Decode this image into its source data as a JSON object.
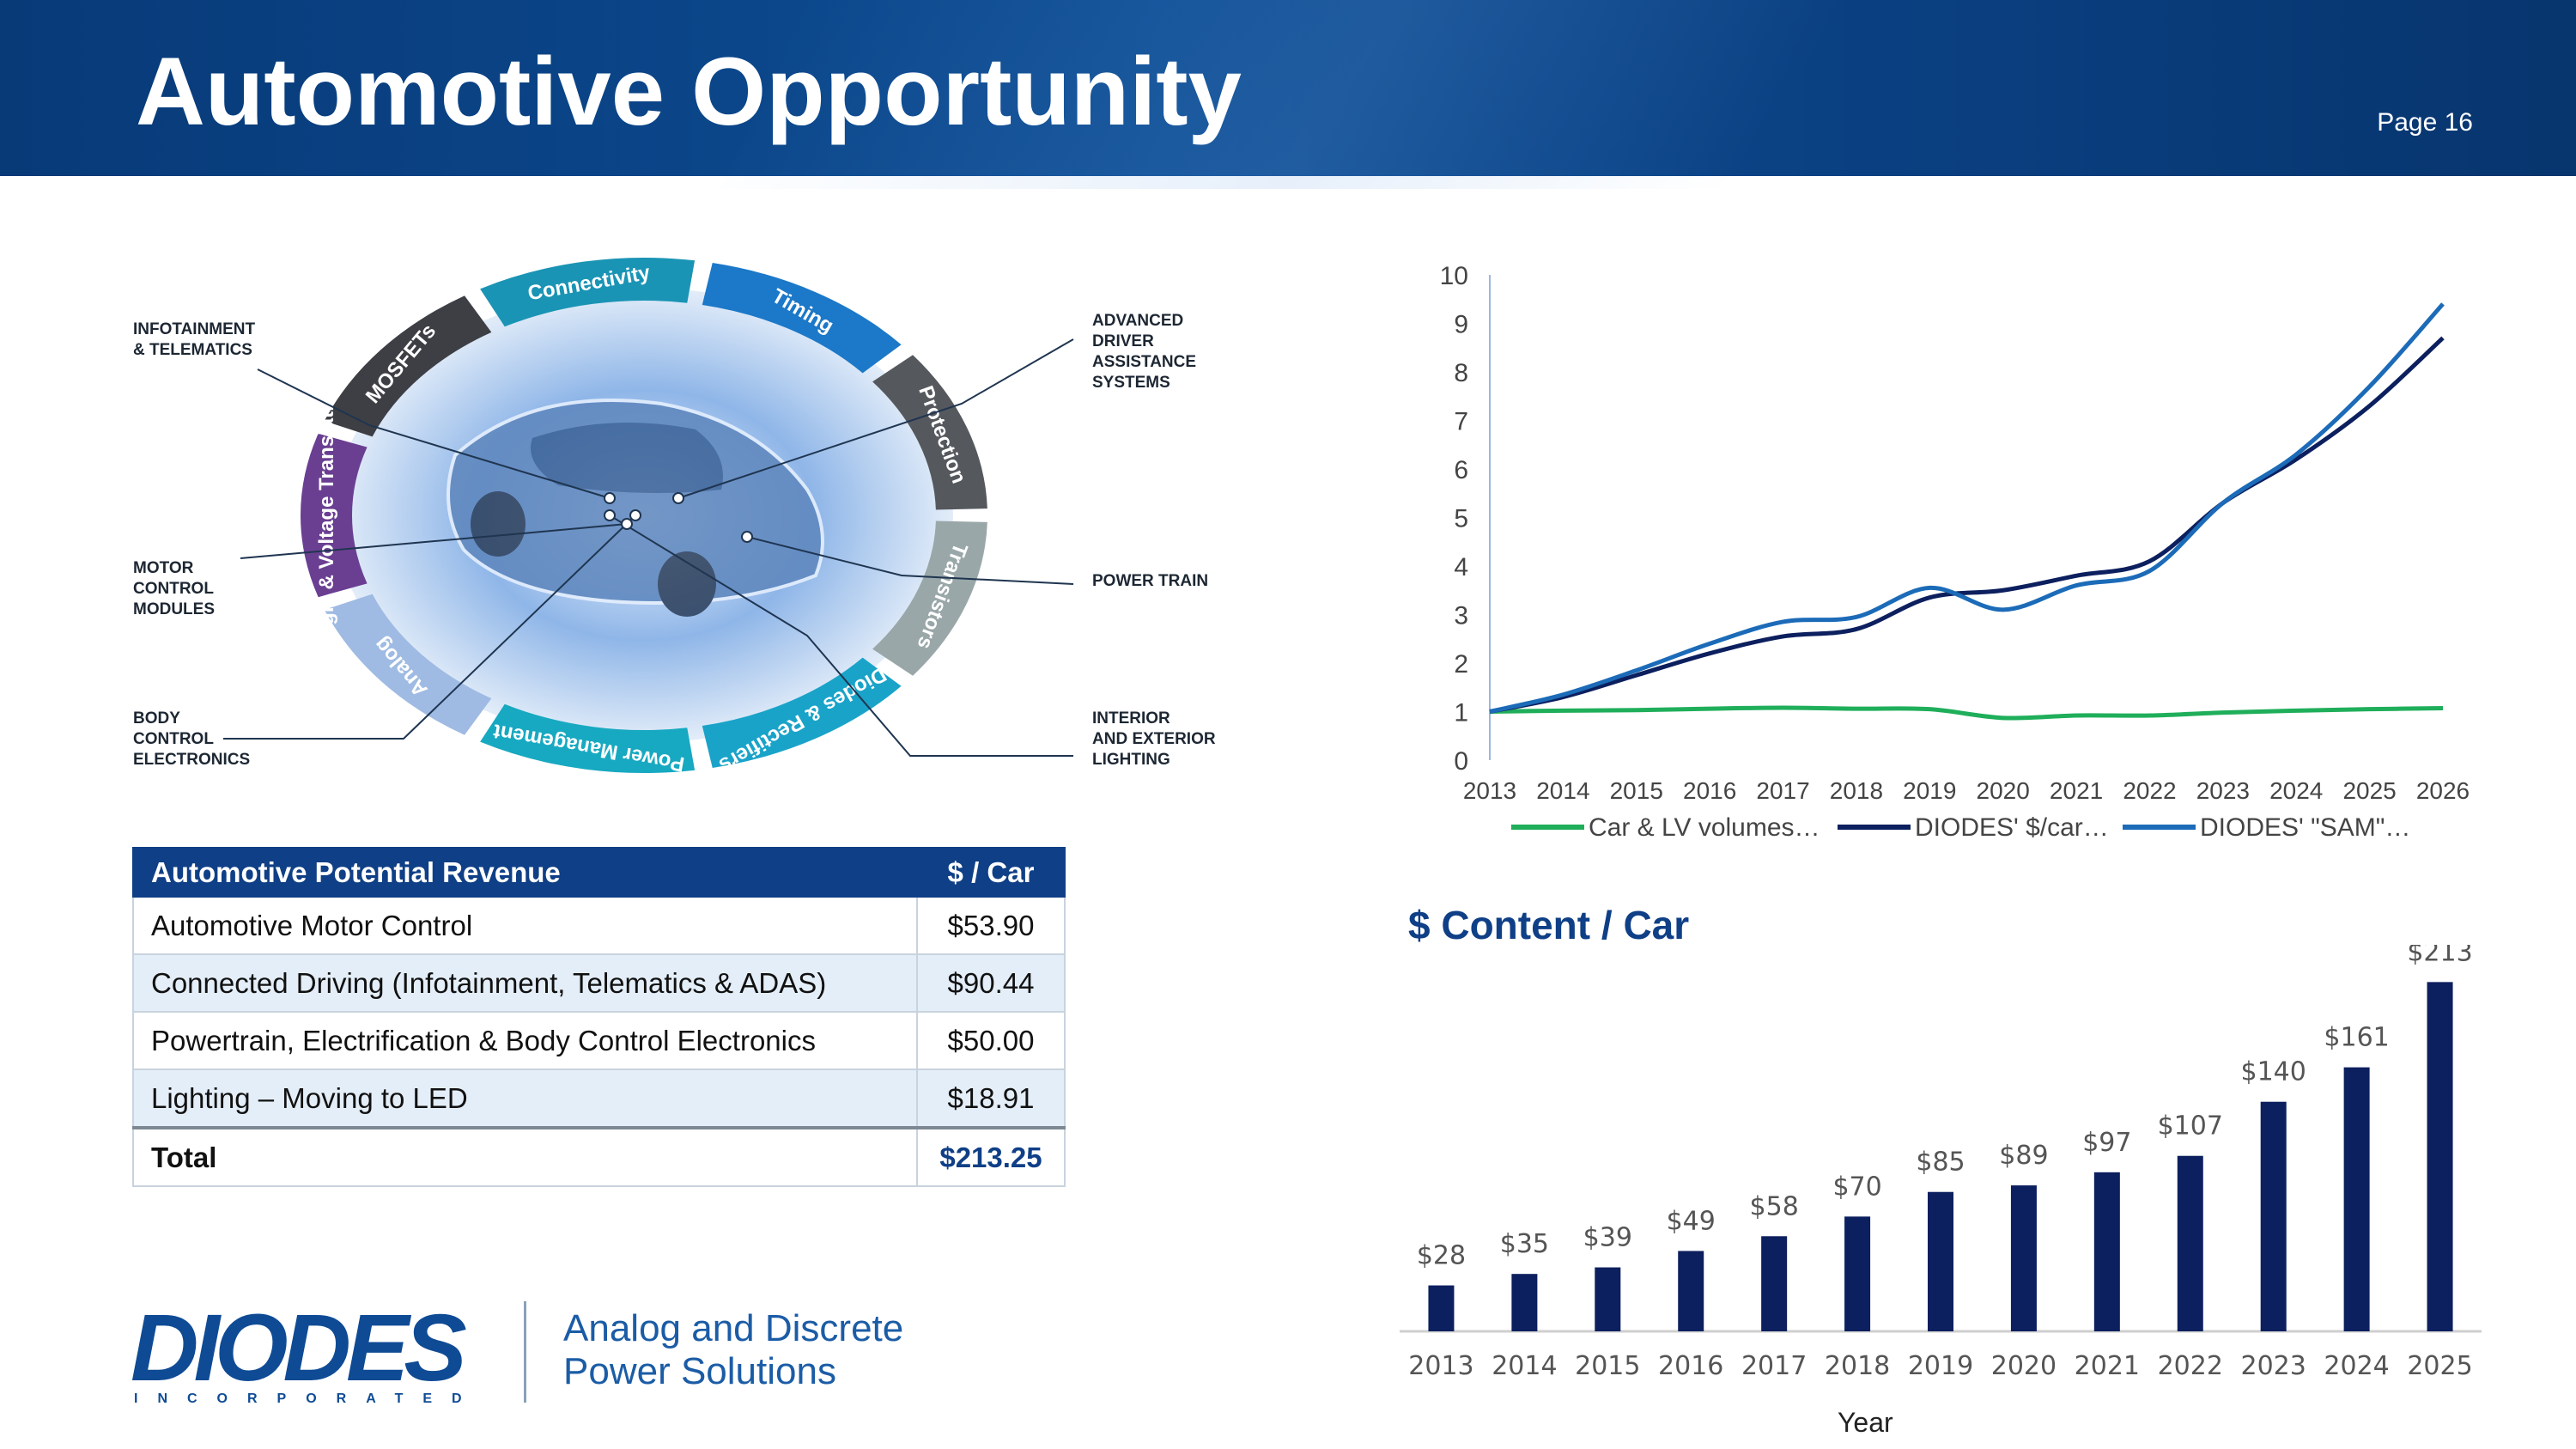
{
  "header": {
    "title": "Automotive Opportunity",
    "page": "Page 16"
  },
  "diagram": {
    "segments": [
      "MOSFETs",
      "Connectivity",
      "Timing",
      "Protection",
      "Transistors",
      "Diodes & Rectifiers",
      "Power Management",
      "Analog",
      "Logic & Voltage Translation"
    ],
    "segment_colors": [
      "#3d3f44",
      "#1a94b5",
      "#1c78c8",
      "#55595e",
      "#9aa7a9",
      "#1aa3c9",
      "#17a9c1",
      "#9fbbe3",
      "#6a3f92"
    ],
    "labels": {
      "infotainment": "INFOTAINMENT\n& TELEMATICS",
      "motor_control": "MOTOR\nCONTROL\nMODULES",
      "body_control": "BODY\nCONTROL\nELECTRONICS",
      "adas": "ADVANCED\nDRIVER\nASSISTANCE\nSYSTEMS",
      "power_train": "POWER TRAIN",
      "lighting": "INTERIOR\nAND EXTERIOR\nLIGHTING"
    }
  },
  "table": {
    "header": [
      "Automotive Potential Revenue",
      "$ / Car"
    ],
    "rows": [
      [
        "Automotive Motor Control",
        "$53.90"
      ],
      [
        "Connected Driving (Infotainment, Telematics & ADAS)",
        "$90.44"
      ],
      [
        "Powertrain, Electrification & Body Control Electronics",
        "$50.00"
      ],
      [
        "Lighting – Moving to LED",
        "$18.91"
      ]
    ],
    "total": [
      "Total",
      "$213.25"
    ]
  },
  "logo": {
    "name": "DIODES",
    "sub": "INCORPORATED",
    "tagline_1": "Analog and Discrete",
    "tagline_2": "Power Solutions"
  },
  "chart_data": [
    {
      "type": "line",
      "x": [
        2013,
        2014,
        2015,
        2016,
        2017,
        2018,
        2019,
        2020,
        2021,
        2022,
        2023,
        2024,
        2025,
        2026
      ],
      "ylim": [
        0,
        10
      ],
      "yticks": [
        0,
        1,
        2,
        3,
        4,
        5,
        6,
        7,
        8,
        9,
        10
      ],
      "legend_position": "bottom",
      "series": [
        {
          "name": "Car & LV volumes…",
          "color": "#1fae5a",
          "values": [
            1.0,
            1.02,
            1.03,
            1.06,
            1.08,
            1.06,
            1.05,
            0.87,
            0.92,
            0.92,
            0.98,
            1.02,
            1.05,
            1.07
          ]
        },
        {
          "name": "DIODES' $/car…",
          "color": "#0c1f5e",
          "values": [
            1.0,
            1.3,
            1.75,
            2.2,
            2.55,
            2.7,
            3.35,
            3.5,
            3.8,
            4.1,
            5.3,
            6.2,
            7.3,
            8.7
          ]
        },
        {
          "name": "DIODES' \"SAM\"…",
          "color": "#1c6bb8",
          "values": [
            1.0,
            1.35,
            1.85,
            2.4,
            2.85,
            2.95,
            3.55,
            3.1,
            3.6,
            3.9,
            5.3,
            6.3,
            7.7,
            9.4
          ]
        }
      ]
    },
    {
      "type": "bar",
      "title": "$ Content / Car",
      "xlabel": "Year",
      "categories": [
        "2013",
        "2014",
        "2015",
        "2016",
        "2017",
        "2018",
        "2019",
        "2020",
        "2021",
        "2022",
        "2023",
        "2024",
        "2025"
      ],
      "values": [
        28,
        35,
        39,
        49,
        58,
        70,
        85,
        89,
        97,
        107,
        140,
        161,
        213
      ],
      "labels": [
        "$28",
        "$35",
        "$39",
        "$49",
        "$58",
        "$70",
        "$85",
        "$89",
        "$97",
        "$107",
        "$140",
        "$161",
        "$213"
      ],
      "bar_color": "#0c1f5e",
      "ylim": [
        0,
        220
      ]
    }
  ]
}
